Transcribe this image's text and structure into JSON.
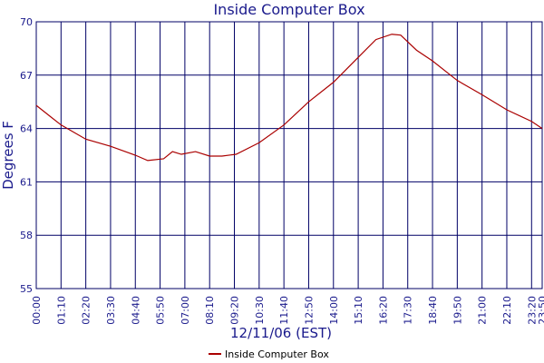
{
  "chart_data": {
    "type": "line",
    "title": "Inside Computer Box",
    "xlabel": "12/11/06 (EST)",
    "ylabel": "Degrees F",
    "x": [
      0,
      38,
      70,
      140,
      210,
      280,
      315,
      360,
      385,
      410,
      450,
      490,
      525,
      565,
      630,
      700,
      770,
      840,
      910,
      960,
      1005,
      1030,
      1075,
      1120,
      1190,
      1260,
      1330,
      1400,
      1430
    ],
    "series": [
      {
        "name": "Inside Computer Box",
        "color": "#aa0000",
        "values": [
          65.3,
          64.7,
          64.2,
          63.4,
          63.0,
          62.5,
          62.2,
          62.3,
          62.7,
          62.55,
          62.7,
          62.45,
          62.45,
          62.55,
          63.2,
          64.2,
          65.5,
          66.6,
          68.0,
          69.0,
          69.3,
          69.25,
          68.4,
          67.8,
          66.7,
          65.9,
          65.05,
          64.4,
          64.0
        ]
      }
    ],
    "xlim": [
      0,
      1430
    ],
    "xticks": [
      {
        "value": 0,
        "label": "00:00"
      },
      {
        "value": 70,
        "label": "01:10"
      },
      {
        "value": 140,
        "label": "02:20"
      },
      {
        "value": 210,
        "label": "03:30"
      },
      {
        "value": 280,
        "label": "04:40"
      },
      {
        "value": 350,
        "label": "05:50"
      },
      {
        "value": 420,
        "label": "07:00"
      },
      {
        "value": 490,
        "label": "08:10"
      },
      {
        "value": 560,
        "label": "09:20"
      },
      {
        "value": 630,
        "label": "10:30"
      },
      {
        "value": 700,
        "label": "11:40"
      },
      {
        "value": 770,
        "label": "12:50"
      },
      {
        "value": 840,
        "label": "14:00"
      },
      {
        "value": 910,
        "label": "15:10"
      },
      {
        "value": 980,
        "label": "16:20"
      },
      {
        "value": 1050,
        "label": "17:30"
      },
      {
        "value": 1120,
        "label": "18:40"
      },
      {
        "value": 1190,
        "label": "19:50"
      },
      {
        "value": 1260,
        "label": "21:00"
      },
      {
        "value": 1330,
        "label": "22:10"
      },
      {
        "value": 1400,
        "label": "23:20"
      },
      {
        "value": 1430,
        "label": "23:50"
      }
    ],
    "ylim": [
      55,
      70
    ],
    "yticks": [
      55,
      58,
      61,
      64,
      67,
      70
    ],
    "grid": true
  }
}
